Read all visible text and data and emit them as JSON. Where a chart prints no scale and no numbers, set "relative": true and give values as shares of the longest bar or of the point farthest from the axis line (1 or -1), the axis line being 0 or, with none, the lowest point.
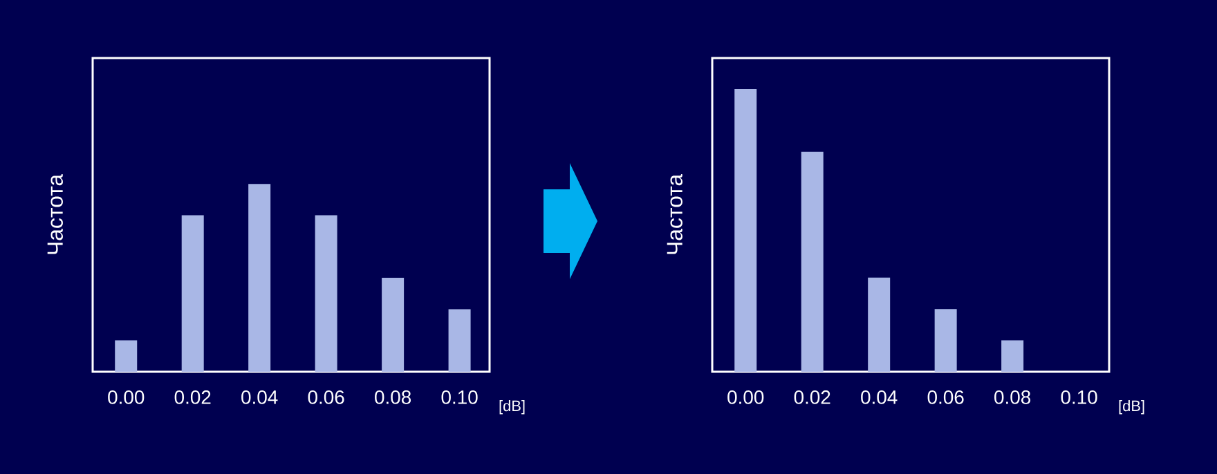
{
  "chart_data": [
    {
      "type": "bar",
      "relative": true,
      "categories": [
        "0.00",
        "0.02",
        "0.04",
        "0.06",
        "0.08",
        "0.10"
      ],
      "values": [
        0.167,
        0.833,
        1,
        0.833,
        0.5,
        0.333
      ],
      "color": "#a9b7e6",
      "xlabel": "[dB]",
      "ylabel": "Частота",
      "tick_labels": "x"
    },
    {
      "type": "bar",
      "relative": true,
      "categories": [
        "0.00",
        "0.02",
        "0.04",
        "0.06",
        "0.08",
        "0.10"
      ],
      "values": [
        1,
        0.778,
        0.333,
        0.222,
        0.111,
        0
      ],
      "color": "#a9b7e6",
      "xlabel": "[dB]",
      "ylabel": "Частота",
      "tick_labels": "x"
    }
  ]
}
